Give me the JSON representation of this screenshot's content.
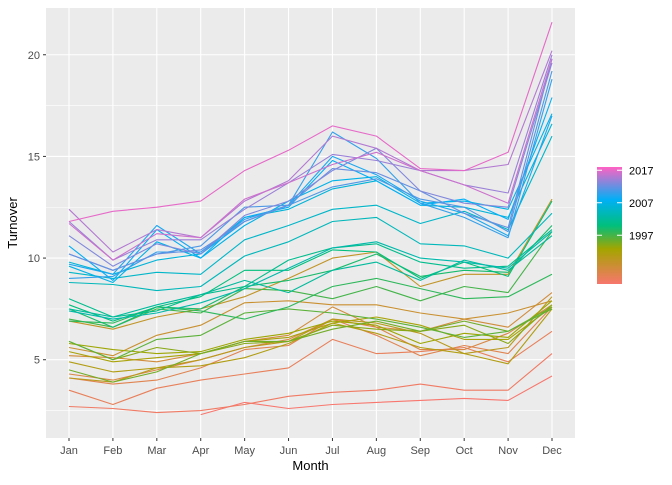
{
  "chart_data": {
    "type": "line",
    "xlabel": "Month",
    "ylabel": "Turnover",
    "categories": [
      "Jan",
      "Feb",
      "Mar",
      "Apr",
      "May",
      "Jun",
      "Jul",
      "Aug",
      "Sep",
      "Oct",
      "Nov",
      "Dec"
    ],
    "ylim": [
      1.15,
      22.3
    ],
    "yticks": [
      5,
      10,
      15,
      20
    ],
    "grid": true,
    "legend": {
      "position": "right",
      "type": "colorbar",
      "labels": [
        "2017",
        "2007",
        "1997"
      ],
      "label_values": [
        2017,
        2007,
        1997
      ],
      "range": [
        1982,
        2018
      ]
    },
    "series": [
      {
        "year": 1982,
        "values": [
          null,
          null,
          null,
          2.3,
          2.9,
          2.6,
          2.8,
          2.9,
          3.0,
          3.1,
          3.0,
          4.2
        ]
      },
      {
        "year": 1983,
        "values": [
          2.7,
          2.6,
          2.4,
          2.5,
          2.8,
          3.2,
          3.4,
          3.5,
          3.8,
          3.5,
          3.5,
          5.3
        ]
      },
      {
        "year": 1984,
        "values": [
          3.5,
          2.8,
          3.6,
          4.0,
          4.3,
          4.6,
          6.0,
          5.3,
          5.4,
          5.6,
          4.9,
          6.4
        ]
      },
      {
        "year": 1985,
        "values": [
          4.1,
          3.8,
          4.0,
          4.6,
          5.5,
          5.7,
          7.0,
          6.2,
          5.2,
          5.7,
          5.3,
          7.6
        ]
      },
      {
        "year": 1986,
        "values": [
          4.3,
          4.0,
          4.5,
          5.0,
          5.6,
          6.0,
          7.0,
          6.6,
          5.5,
          5.5,
          6.3,
          7.7
        ]
      },
      {
        "year": 1987,
        "values": [
          5.2,
          5.1,
          4.9,
          5.3,
          5.9,
          6.2,
          7.6,
          6.6,
          6.4,
          7.0,
          6.6,
          8.3
        ]
      },
      {
        "year": 1988,
        "values": [
          5.6,
          5.2,
          6.2,
          6.7,
          7.8,
          7.9,
          7.7,
          7.7,
          7.3,
          7.0,
          7.3,
          7.9
        ]
      },
      {
        "year": 1989,
        "values": [
          6.9,
          6.5,
          7.1,
          7.5,
          8.1,
          9.0,
          10.0,
          10.3,
          8.6,
          9.2,
          9.2,
          12.9
        ]
      },
      {
        "year": 1990,
        "values": [
          4.1,
          3.9,
          4.6,
          5.0,
          5.6,
          5.9,
          7.0,
          6.8,
          6.3,
          5.3,
          5.6,
          8.1
        ]
      },
      {
        "year": 1991,
        "values": [
          4.9,
          4.4,
          4.6,
          4.7,
          5.1,
          5.8,
          6.8,
          6.3,
          5.6,
          5.3,
          4.8,
          7.5
        ]
      },
      {
        "year": 1992,
        "values": [
          5.4,
          4.9,
          5.1,
          5.3,
          5.9,
          6.1,
          6.8,
          7.1,
          6.7,
          6.0,
          6.0,
          7.6
        ]
      },
      {
        "year": 1993,
        "values": [
          5.8,
          5.5,
          5.3,
          5.4,
          6.0,
          6.3,
          6.9,
          6.7,
          5.8,
          6.3,
          6.1,
          7.9
        ]
      },
      {
        "year": 1994,
        "values": [
          5.9,
          5.0,
          5.6,
          5.3,
          5.8,
          5.9,
          6.7,
          6.5,
          6.4,
          6.7,
          5.8,
          7.7
        ]
      },
      {
        "year": 1995,
        "values": [
          4.5,
          3.9,
          4.4,
          5.3,
          5.9,
          5.9,
          6.5,
          6.9,
          6.4,
          6.9,
          6.4,
          7.6
        ]
      },
      {
        "year": 1996,
        "values": [
          5.9,
          5.0,
          6.0,
          6.2,
          7.3,
          7.5,
          7.3,
          7.0,
          6.6,
          6.1,
          6.4,
          7.5
        ]
      },
      {
        "year": 1997,
        "values": [
          7.0,
          6.6,
          7.5,
          7.3,
          8.5,
          8.4,
          8.0,
          8.6,
          7.9,
          8.6,
          8.3,
          11.3
        ]
      },
      {
        "year": 1998,
        "values": [
          6.9,
          6.8,
          7.6,
          7.4,
          7.0,
          7.6,
          8.6,
          9.0,
          8.5,
          8.0,
          8.1,
          9.2
        ]
      },
      {
        "year": 1999,
        "values": [
          7.5,
          6.6,
          7.6,
          7.5,
          8.6,
          8.9,
          9.4,
          10.2,
          9.1,
          9.4,
          9.3,
          11.6
        ]
      },
      {
        "year": 2000,
        "values": [
          7.7,
          6.9,
          7.6,
          8.1,
          9.4,
          9.4,
          10.4,
          10.3,
          9.0,
          9.8,
          9.1,
          12.8
        ]
      },
      {
        "year": 2001,
        "values": [
          8.0,
          7.1,
          7.4,
          8.2,
          8.6,
          9.9,
          10.5,
          10.7,
          9.8,
          9.5,
          9.6,
          11.4
        ]
      },
      {
        "year": 2002,
        "values": [
          7.5,
          7.1,
          7.7,
          8.2,
          8.9,
          8.3,
          9.4,
          9.8,
          8.9,
          9.9,
          9.4,
          11.1
        ]
      },
      {
        "year": 2003,
        "values": [
          7.4,
          7.0,
          7.3,
          7.8,
          8.5,
          9.5,
          10.5,
          10.8,
          10.0,
          9.8,
          9.5,
          11.3
        ]
      },
      {
        "year": 2004,
        "values": [
          8.8,
          8.7,
          8.4,
          8.6,
          10.1,
          10.8,
          11.8,
          12.0,
          10.7,
          10.6,
          10.0,
          12.2
        ]
      },
      {
        "year": 2005,
        "values": [
          9.3,
          9.0,
          9.3,
          9.2,
          10.9,
          11.6,
          12.4,
          12.6,
          11.7,
          12.3,
          11.4,
          16.0
        ]
      },
      {
        "year": 2006,
        "values": [
          9.8,
          9.2,
          9.9,
          10.2,
          12.0,
          12.4,
          13.4,
          13.8,
          12.6,
          12.5,
          12.0,
          16.6
        ]
      },
      {
        "year": 2007,
        "values": [
          9.6,
          8.8,
          10.8,
          10.0,
          11.6,
          12.8,
          13.8,
          14.0,
          12.7,
          12.8,
          12.4,
          17.1
        ]
      },
      {
        "year": 2008,
        "values": [
          10.6,
          8.9,
          11.4,
          10.0,
          12.0,
          12.5,
          14.8,
          13.8,
          12.6,
          12.9,
          11.9,
          17.9
        ]
      },
      {
        "year": 2009,
        "values": [
          9.7,
          9.2,
          11.6,
          10.2,
          11.8,
          12.6,
          15.0,
          14.1,
          12.8,
          12.2,
          11.1,
          17.0
        ]
      },
      {
        "year": 2010,
        "values": [
          9.0,
          9.1,
          10.3,
          10.3,
          11.9,
          12.6,
          16.2,
          14.9,
          12.7,
          12.0,
          11.0,
          18.8
        ]
      },
      {
        "year": 2011,
        "values": [
          10.2,
          9.4,
          10.2,
          10.6,
          12.5,
          12.6,
          13.5,
          13.9,
          12.9,
          12.5,
          11.3,
          19.2
        ]
      },
      {
        "year": 2012,
        "values": [
          10.2,
          9.4,
          10.2,
          10.4,
          11.8,
          12.6,
          14.4,
          14.2,
          13.3,
          12.2,
          11.5,
          19.8
        ]
      },
      {
        "year": 2013,
        "values": [
          11.1,
          9.6,
          10.7,
          10.2,
          12.1,
          12.8,
          14.3,
          15.4,
          13.3,
          12.7,
          12.5,
          19.6
        ]
      },
      {
        "year": 2014,
        "values": [
          11.8,
          9.9,
          10.9,
          10.9,
          12.4,
          13.7,
          15.1,
          14.8,
          14.3,
          13.6,
          13.2,
          20.0
        ]
      },
      {
        "year": 2015,
        "values": [
          12.4,
          10.3,
          11.4,
          11.0,
          12.8,
          13.8,
          16.0,
          15.4,
          14.3,
          14.3,
          14.6,
          20.2
        ]
      },
      {
        "year": 2016,
        "values": [
          11.7,
          9.9,
          11.2,
          11.0,
          12.9,
          13.7,
          14.6,
          15.2,
          14.3,
          13.6,
          12.7,
          19.8
        ]
      },
      {
        "year": 2017,
        "values": [
          11.8,
          12.3,
          12.5,
          12.8,
          14.3,
          15.3,
          16.5,
          16.0,
          14.4,
          14.3,
          15.2,
          21.6
        ]
      }
    ]
  }
}
